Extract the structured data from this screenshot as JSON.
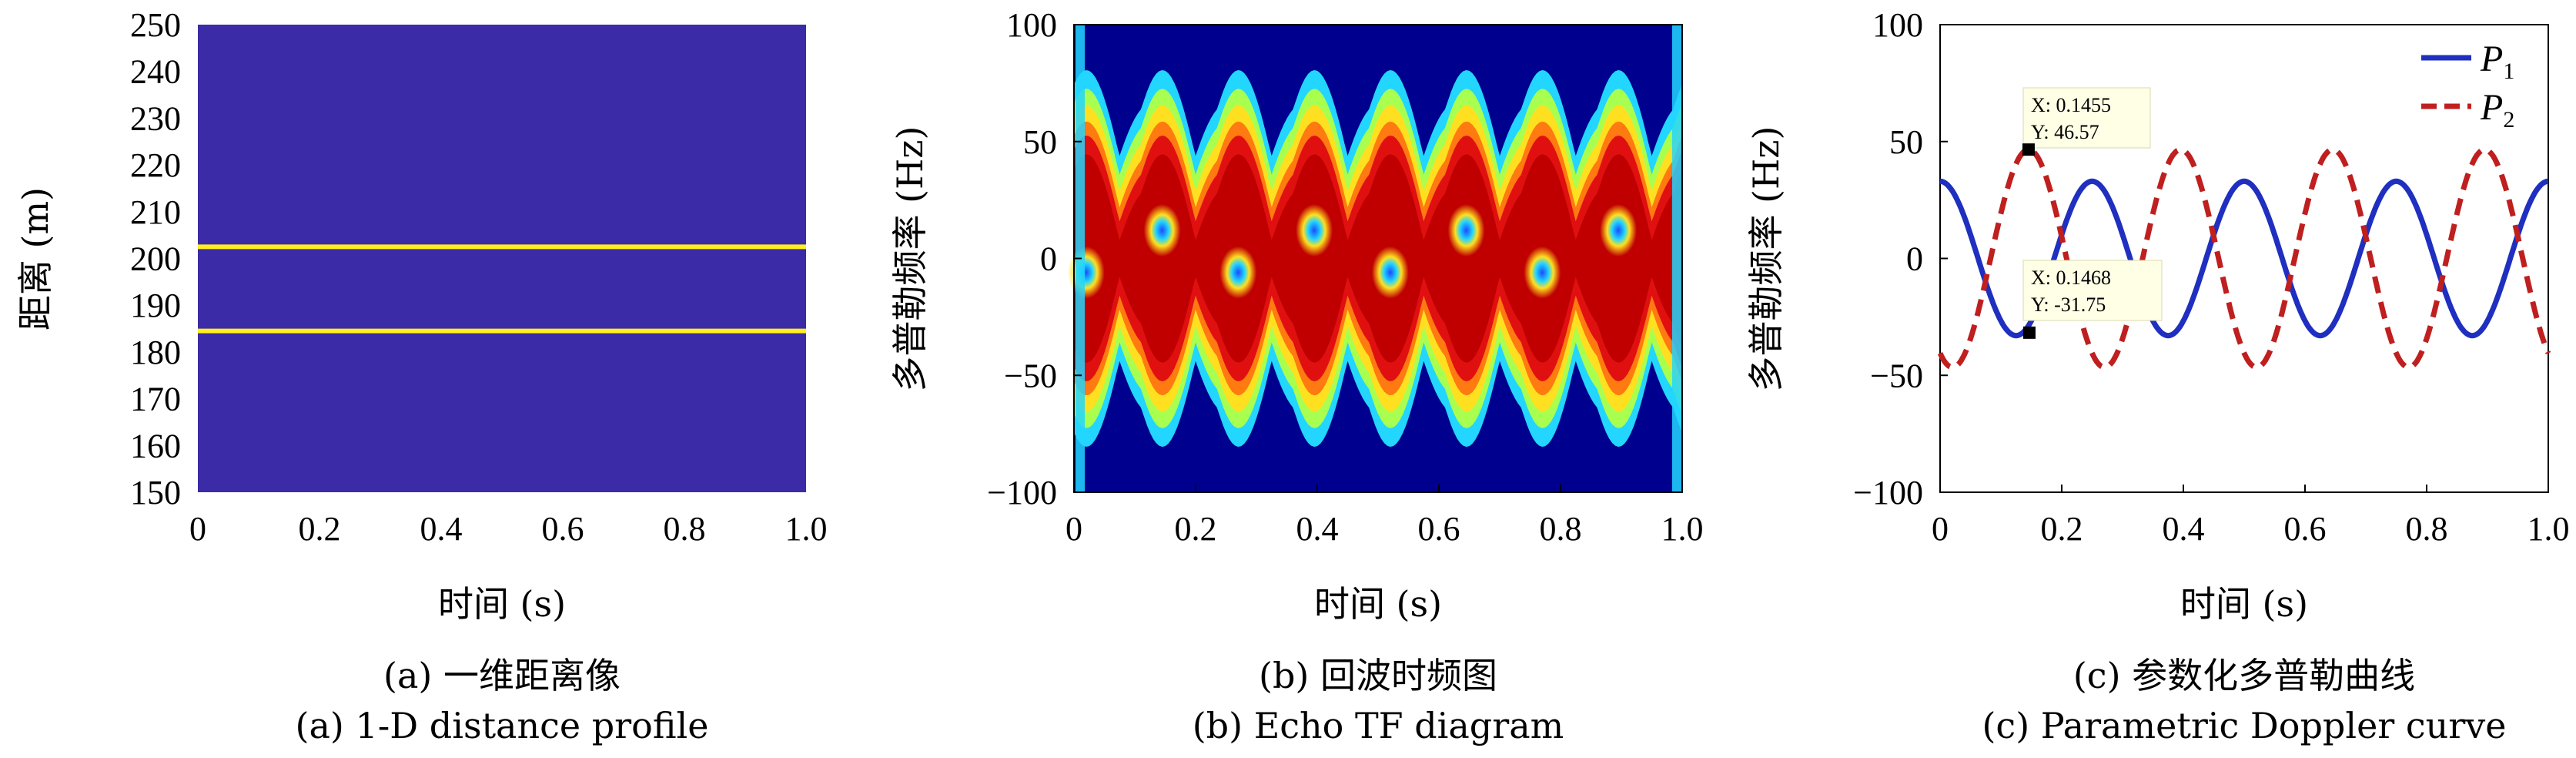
{
  "chart_data": [
    {
      "type": "heatmap",
      "caption_cn": "(a) 一维距离像",
      "caption_en": "(a) 1-D distance profile",
      "xlabel": "时间 (s)",
      "ylabel": "距离 (m)",
      "xlim": [
        0,
        1.0
      ],
      "ylim": [
        150,
        250
      ],
      "x_ticks": [
        "0",
        "0.2",
        "0.4",
        "0.6",
        "0.8",
        "1.0"
      ],
      "y_ticks": [
        "150",
        "160",
        "170",
        "180",
        "190",
        "200",
        "210",
        "220",
        "230",
        "240",
        "250"
      ],
      "background_color": "#3b2ba6",
      "line_color": "#ffee20",
      "range_lines": [
        202.5,
        184.5
      ]
    },
    {
      "type": "heatmap",
      "caption_cn": "(b) 回波时频图",
      "caption_en": "(b) Echo TF diagram",
      "xlabel": "时间 (s)",
      "ylabel": "多普勒频率 (Hz)",
      "xlim": [
        0,
        1.0
      ],
      "ylim": [
        -100,
        100
      ],
      "x_ticks": [
        "0",
        "0.2",
        "0.4",
        "0.6",
        "0.8",
        "1.0"
      ],
      "y_ticks": [
        "−100",
        "−50",
        "0",
        "50",
        "100"
      ],
      "colormap": "jet",
      "components": [
        {
          "amplitude": 32,
          "period": 0.25,
          "phase_time": 0.0
        },
        {
          "amplitude": 46.57,
          "period": 0.25,
          "phase_time": 0.1455
        }
      ]
    },
    {
      "type": "line",
      "caption_cn": "(c) 参数化多普勒曲线",
      "caption_en": "(c) Parametric Doppler curve",
      "xlabel": "时间 (s)",
      "ylabel": "多普勒频率 (Hz)",
      "xlim": [
        0,
        1.0
      ],
      "ylim": [
        -100,
        100
      ],
      "x_ticks": [
        "0",
        "0.2",
        "0.4",
        "0.6",
        "0.8",
        "1.0"
      ],
      "y_ticks": [
        "−100",
        "−50",
        "0",
        "50",
        "100"
      ],
      "legend_position": "top-right",
      "series": [
        {
          "name": "P",
          "subscript": "1",
          "color": "#1f2fbf",
          "style": "solid",
          "amplitude": 33,
          "period": 0.25,
          "phase_time": 0.0
        },
        {
          "name": "P",
          "subscript": "2",
          "color": "#bf1f1f",
          "style": "dashed",
          "amplitude": 46.57,
          "period": 0.25,
          "phase_time": 0.1455
        }
      ],
      "datatips": [
        {
          "x_label": "X: 0.1455",
          "y_label": "Y: 46.57",
          "x": 0.1455,
          "y": 46.57
        },
        {
          "x_label": "X: 0.1468",
          "y_label": "Y: -31.75",
          "x": 0.1468,
          "y": -31.75
        }
      ]
    }
  ]
}
